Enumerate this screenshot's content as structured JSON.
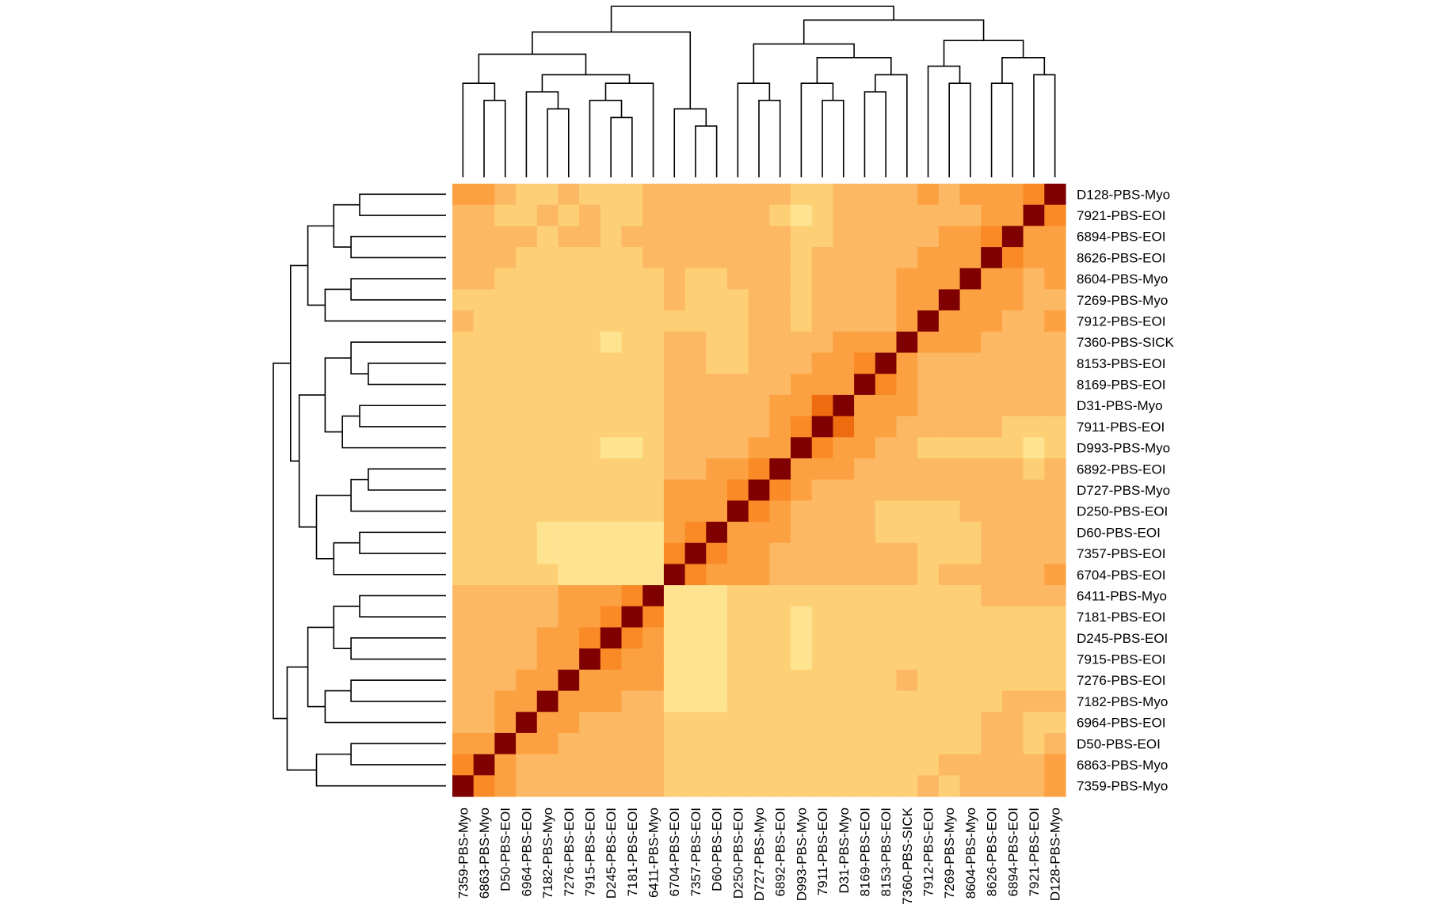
{
  "chart_data": {
    "type": "heatmap",
    "title": "",
    "xlabel": "",
    "ylabel": "",
    "legend": "none",
    "grid": false,
    "colors": {
      "palette": [
        "#FFFFC8",
        "#FFF2A8",
        "#FEE391",
        "#FDD076",
        "#FDB863",
        "#FCA141",
        "#F98A25",
        "#EE6B10",
        "#D24A05",
        "#A6260D",
        "#7F0000"
      ],
      "text": "#000000",
      "lines": "#000000"
    },
    "value_range": [
      0,
      1
    ],
    "col_order": [
      "7359-PBS-Myo",
      "6863-PBS-Myo",
      "D50-PBS-EOI",
      "6964-PBS-EOI",
      "7182-PBS-Myo",
      "7276-PBS-EOI",
      "7915-PBS-EOI",
      "D245-PBS-EOI",
      "7181-PBS-EOI",
      "6411-PBS-Myo",
      "6704-PBS-EOI",
      "7357-PBS-EOI",
      "D60-PBS-EOI",
      "D250-PBS-EOI",
      "D727-PBS-Myo",
      "6892-PBS-EOI",
      "D993-PBS-Myo",
      "7911-PBS-EOI",
      "D31-PBS-Myo",
      "8169-PBS-EOI",
      "8153-PBS-EOI",
      "7360-PBS-SICK",
      "7912-PBS-EOI",
      "7269-PBS-Myo",
      "8604-PBS-Myo",
      "8626-PBS-EOI",
      "6894-PBS-EOI",
      "7921-PBS-EOI",
      "D128-PBS-Myo"
    ],
    "row_order_top_to_bottom": [
      "D128-PBS-Myo",
      "7921-PBS-EOI",
      "6894-PBS-EOI",
      "8626-PBS-EOI",
      "8604-PBS-Myo",
      "7269-PBS-Myo",
      "7912-PBS-EOI",
      "7360-PBS-SICK",
      "8153-PBS-EOI",
      "8169-PBS-EOI",
      "D31-PBS-Myo",
      "7911-PBS-EOI",
      "D993-PBS-Myo",
      "6892-PBS-EOI",
      "D727-PBS-Myo",
      "D250-PBS-EOI",
      "D60-PBS-EOI",
      "7357-PBS-EOI",
      "6704-PBS-EOI",
      "6411-PBS-Myo",
      "7181-PBS-EOI",
      "D245-PBS-EOI",
      "7915-PBS-EOI",
      "7276-PBS-EOI",
      "7182-PBS-Myo",
      "6964-PBS-EOI",
      "D50-PBS-EOI",
      "6863-PBS-Myo",
      "7359-PBS-Myo"
    ],
    "values": [
      [
        0.55,
        0.5,
        0.45,
        0.3,
        0.35,
        0.4,
        0.35,
        0.3,
        0.35,
        0.4,
        0.45,
        0.4,
        0.45,
        0.4,
        0.45,
        0.4,
        0.3,
        0.35,
        0.4,
        0.45,
        0.4,
        0.45,
        0.5,
        0.45,
        0.5,
        0.55,
        0.6,
        0.7,
        1.0
      ],
      [
        0.4,
        0.45,
        0.35,
        0.35,
        0.4,
        0.35,
        0.4,
        0.35,
        0.35,
        0.4,
        0.45,
        0.4,
        0.45,
        0.45,
        0.45,
        0.35,
        0.25,
        0.35,
        0.4,
        0.4,
        0.4,
        0.4,
        0.45,
        0.45,
        0.45,
        0.55,
        0.6,
        1.0,
        0.7
      ],
      [
        0.45,
        0.4,
        0.45,
        0.4,
        0.35,
        0.4,
        0.4,
        0.35,
        0.4,
        0.4,
        0.45,
        0.4,
        0.4,
        0.4,
        0.45,
        0.4,
        0.3,
        0.35,
        0.4,
        0.4,
        0.4,
        0.4,
        0.45,
        0.5,
        0.55,
        0.65,
        1.0,
        0.6,
        0.6
      ],
      [
        0.4,
        0.4,
        0.4,
        0.35,
        0.35,
        0.35,
        0.35,
        0.35,
        0.35,
        0.4,
        0.45,
        0.4,
        0.4,
        0.4,
        0.45,
        0.4,
        0.35,
        0.4,
        0.4,
        0.45,
        0.4,
        0.45,
        0.5,
        0.55,
        0.6,
        1.0,
        0.65,
        0.55,
        0.55
      ],
      [
        0.4,
        0.4,
        0.35,
        0.3,
        0.3,
        0.3,
        0.35,
        0.3,
        0.3,
        0.35,
        0.4,
        0.35,
        0.35,
        0.4,
        0.4,
        0.4,
        0.35,
        0.4,
        0.45,
        0.45,
        0.45,
        0.5,
        0.55,
        0.6,
        1.0,
        0.6,
        0.55,
        0.45,
        0.5
      ],
      [
        0.35,
        0.35,
        0.35,
        0.35,
        0.35,
        0.35,
        0.3,
        0.3,
        0.3,
        0.35,
        0.4,
        0.35,
        0.35,
        0.35,
        0.4,
        0.4,
        0.35,
        0.4,
        0.45,
        0.45,
        0.45,
        0.5,
        0.6,
        1.0,
        0.6,
        0.55,
        0.5,
        0.45,
        0.45
      ],
      [
        0.4,
        0.35,
        0.35,
        0.3,
        0.3,
        0.3,
        0.3,
        0.3,
        0.3,
        0.35,
        0.35,
        0.35,
        0.35,
        0.35,
        0.4,
        0.4,
        0.35,
        0.4,
        0.45,
        0.45,
        0.45,
        0.55,
        1.0,
        0.6,
        0.55,
        0.5,
        0.45,
        0.45,
        0.5
      ],
      [
        0.35,
        0.35,
        0.3,
        0.3,
        0.3,
        0.35,
        0.3,
        0.25,
        0.3,
        0.35,
        0.4,
        0.4,
        0.35,
        0.35,
        0.4,
        0.4,
        0.4,
        0.45,
        0.5,
        0.55,
        0.55,
        1.0,
        0.55,
        0.5,
        0.5,
        0.45,
        0.4,
        0.4,
        0.45
      ],
      [
        0.35,
        0.35,
        0.35,
        0.3,
        0.35,
        0.3,
        0.3,
        0.3,
        0.3,
        0.35,
        0.4,
        0.4,
        0.35,
        0.35,
        0.4,
        0.4,
        0.45,
        0.5,
        0.55,
        0.65,
        1.0,
        0.55,
        0.45,
        0.45,
        0.45,
        0.4,
        0.4,
        0.4,
        0.4
      ],
      [
        0.35,
        0.35,
        0.3,
        0.3,
        0.3,
        0.3,
        0.3,
        0.3,
        0.3,
        0.35,
        0.4,
        0.4,
        0.4,
        0.4,
        0.4,
        0.45,
        0.5,
        0.55,
        0.6,
        1.0,
        0.65,
        0.55,
        0.45,
        0.45,
        0.45,
        0.45,
        0.4,
        0.4,
        0.45
      ],
      [
        0.35,
        0.35,
        0.3,
        0.3,
        0.3,
        0.3,
        0.3,
        0.3,
        0.3,
        0.35,
        0.4,
        0.4,
        0.4,
        0.4,
        0.45,
        0.5,
        0.6,
        0.75,
        1.0,
        0.6,
        0.55,
        0.5,
        0.45,
        0.45,
        0.45,
        0.4,
        0.4,
        0.4,
        0.4
      ],
      [
        0.35,
        0.35,
        0.3,
        0.3,
        0.3,
        0.3,
        0.3,
        0.3,
        0.3,
        0.35,
        0.4,
        0.4,
        0.4,
        0.4,
        0.45,
        0.5,
        0.65,
        1.0,
        0.75,
        0.55,
        0.5,
        0.45,
        0.4,
        0.4,
        0.4,
        0.4,
        0.35,
        0.35,
        0.35
      ],
      [
        0.3,
        0.3,
        0.3,
        0.3,
        0.3,
        0.3,
        0.3,
        0.25,
        0.25,
        0.3,
        0.4,
        0.4,
        0.4,
        0.45,
        0.5,
        0.55,
        1.0,
        0.65,
        0.6,
        0.5,
        0.45,
        0.4,
        0.35,
        0.35,
        0.35,
        0.35,
        0.3,
        0.25,
        0.3
      ],
      [
        0.35,
        0.35,
        0.35,
        0.35,
        0.35,
        0.35,
        0.3,
        0.3,
        0.3,
        0.35,
        0.45,
        0.45,
        0.5,
        0.6,
        0.7,
        1.0,
        0.55,
        0.5,
        0.5,
        0.45,
        0.4,
        0.4,
        0.4,
        0.4,
        0.4,
        0.4,
        0.4,
        0.35,
        0.4
      ],
      [
        0.35,
        0.35,
        0.3,
        0.3,
        0.3,
        0.3,
        0.3,
        0.3,
        0.3,
        0.35,
        0.5,
        0.5,
        0.55,
        0.65,
        1.0,
        0.7,
        0.5,
        0.45,
        0.45,
        0.4,
        0.4,
        0.4,
        0.4,
        0.4,
        0.4,
        0.45,
        0.45,
        0.45,
        0.45
      ],
      [
        0.35,
        0.35,
        0.3,
        0.3,
        0.3,
        0.3,
        0.3,
        0.3,
        0.3,
        0.35,
        0.55,
        0.55,
        0.6,
        1.0,
        0.65,
        0.6,
        0.45,
        0.4,
        0.4,
        0.4,
        0.35,
        0.35,
        0.35,
        0.35,
        0.4,
        0.4,
        0.4,
        0.45,
        0.4
      ],
      [
        0.35,
        0.35,
        0.3,
        0.3,
        0.25,
        0.2,
        0.2,
        0.2,
        0.2,
        0.25,
        0.6,
        0.65,
        1.0,
        0.6,
        0.55,
        0.5,
        0.4,
        0.4,
        0.4,
        0.4,
        0.35,
        0.35,
        0.35,
        0.35,
        0.35,
        0.4,
        0.4,
        0.45,
        0.45
      ],
      [
        0.35,
        0.35,
        0.3,
        0.3,
        0.25,
        0.2,
        0.2,
        0.2,
        0.2,
        0.25,
        0.7,
        1.0,
        0.65,
        0.55,
        0.5,
        0.45,
        0.4,
        0.4,
        0.4,
        0.4,
        0.4,
        0.4,
        0.35,
        0.35,
        0.35,
        0.4,
        0.4,
        0.4,
        0.4
      ],
      [
        0.35,
        0.35,
        0.3,
        0.3,
        0.3,
        0.25,
        0.2,
        0.2,
        0.2,
        0.25,
        1.0,
        0.7,
        0.6,
        0.55,
        0.5,
        0.45,
        0.4,
        0.4,
        0.4,
        0.4,
        0.4,
        0.4,
        0.35,
        0.4,
        0.4,
        0.45,
        0.45,
        0.45,
        0.55
      ],
      [
        0.4,
        0.4,
        0.4,
        0.4,
        0.45,
        0.5,
        0.55,
        0.6,
        0.7,
        1.0,
        0.25,
        0.25,
        0.25,
        0.35,
        0.35,
        0.35,
        0.3,
        0.35,
        0.35,
        0.35,
        0.35,
        0.35,
        0.35,
        0.35,
        0.35,
        0.4,
        0.4,
        0.4,
        0.4
      ],
      [
        0.4,
        0.4,
        0.4,
        0.4,
        0.45,
        0.5,
        0.55,
        0.65,
        1.0,
        0.7,
        0.2,
        0.2,
        0.2,
        0.3,
        0.3,
        0.3,
        0.25,
        0.3,
        0.3,
        0.3,
        0.3,
        0.3,
        0.3,
        0.3,
        0.3,
        0.35,
        0.35,
        0.35,
        0.35
      ],
      [
        0.4,
        0.4,
        0.4,
        0.45,
        0.5,
        0.55,
        0.65,
        1.0,
        0.65,
        0.6,
        0.2,
        0.2,
        0.2,
        0.3,
        0.3,
        0.3,
        0.25,
        0.3,
        0.3,
        0.3,
        0.3,
        0.3,
        0.3,
        0.3,
        0.3,
        0.35,
        0.35,
        0.35,
        0.35
      ],
      [
        0.4,
        0.4,
        0.45,
        0.45,
        0.55,
        0.6,
        1.0,
        0.65,
        0.55,
        0.55,
        0.2,
        0.2,
        0.2,
        0.3,
        0.3,
        0.3,
        0.25,
        0.3,
        0.3,
        0.3,
        0.3,
        0.3,
        0.3,
        0.3,
        0.3,
        0.35,
        0.35,
        0.35,
        0.35
      ],
      [
        0.4,
        0.4,
        0.45,
        0.5,
        0.6,
        1.0,
        0.6,
        0.55,
        0.5,
        0.5,
        0.25,
        0.2,
        0.2,
        0.3,
        0.3,
        0.3,
        0.3,
        0.3,
        0.3,
        0.3,
        0.3,
        0.4,
        0.3,
        0.3,
        0.3,
        0.35,
        0.35,
        0.35,
        0.35
      ],
      [
        0.45,
        0.45,
        0.5,
        0.6,
        1.0,
        0.6,
        0.55,
        0.5,
        0.45,
        0.45,
        0.25,
        0.25,
        0.25,
        0.3,
        0.3,
        0.3,
        0.3,
        0.3,
        0.3,
        0.3,
        0.3,
        0.35,
        0.3,
        0.3,
        0.3,
        0.35,
        0.4,
        0.4,
        0.45
      ],
      [
        0.45,
        0.45,
        0.55,
        1.0,
        0.6,
        0.5,
        0.45,
        0.45,
        0.4,
        0.4,
        0.3,
        0.3,
        0.3,
        0.3,
        0.3,
        0.35,
        0.3,
        0.3,
        0.3,
        0.3,
        0.3,
        0.3,
        0.3,
        0.35,
        0.35,
        0.4,
        0.4,
        0.35,
        0.3
      ],
      [
        0.55,
        0.6,
        1.0,
        0.55,
        0.5,
        0.45,
        0.45,
        0.4,
        0.4,
        0.4,
        0.3,
        0.3,
        0.3,
        0.35,
        0.3,
        0.35,
        0.3,
        0.3,
        0.3,
        0.3,
        0.35,
        0.35,
        0.35,
        0.35,
        0.35,
        0.4,
        0.45,
        0.35,
        0.45
      ],
      [
        0.7,
        1.0,
        0.6,
        0.45,
        0.45,
        0.4,
        0.4,
        0.4,
        0.4,
        0.4,
        0.35,
        0.35,
        0.35,
        0.35,
        0.35,
        0.35,
        0.3,
        0.35,
        0.35,
        0.35,
        0.35,
        0.35,
        0.35,
        0.4,
        0.4,
        0.4,
        0.45,
        0.45,
        0.5
      ],
      [
        1.0,
        0.7,
        0.55,
        0.45,
        0.45,
        0.4,
        0.4,
        0.4,
        0.4,
        0.4,
        0.35,
        0.35,
        0.35,
        0.35,
        0.35,
        0.35,
        0.3,
        0.35,
        0.35,
        0.35,
        0.35,
        0.35,
        0.4,
        0.35,
        0.4,
        0.4,
        0.45,
        0.4,
        0.55
      ]
    ]
  }
}
